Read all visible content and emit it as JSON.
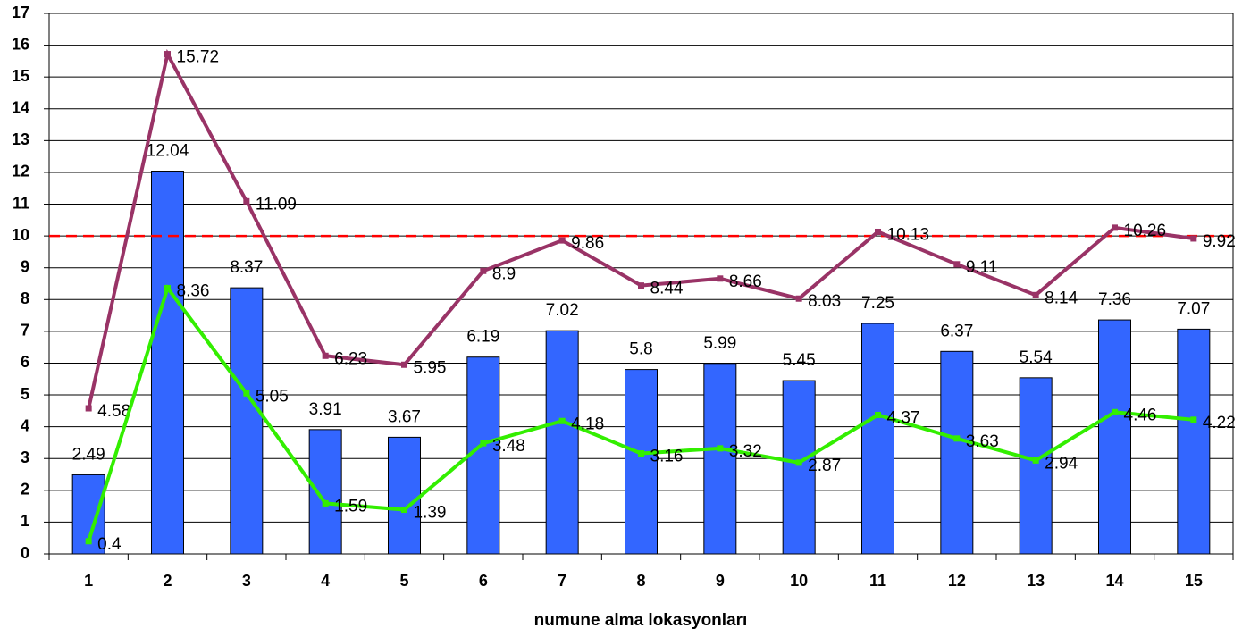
{
  "chart_data": {
    "type": "bar",
    "x_label": "numune alma lokasyonları",
    "categories": [
      "1",
      "2",
      "3",
      "4",
      "5",
      "6",
      "7",
      "8",
      "9",
      "10",
      "11",
      "12",
      "13",
      "14",
      "15"
    ],
    "series": [
      {
        "type": "bar",
        "color": "#3366ff",
        "values": [
          2.49,
          12.04,
          8.37,
          3.91,
          3.67,
          6.19,
          7.02,
          5.8,
          5.99,
          5.45,
          7.25,
          6.37,
          5.54,
          7.36,
          7.07
        ]
      },
      {
        "type": "line",
        "color": "#993366",
        "values": [
          4.58,
          15.72,
          11.09,
          6.23,
          5.95,
          8.9,
          9.86,
          8.44,
          8.66,
          8.03,
          10.13,
          9.11,
          8.14,
          10.26,
          9.92
        ]
      },
      {
        "type": "line",
        "color": "#33ee00",
        "values": [
          0.4,
          8.36,
          5.05,
          1.59,
          1.39,
          3.48,
          4.18,
          3.16,
          3.32,
          2.87,
          4.37,
          3.63,
          2.94,
          4.46,
          4.22
        ]
      }
    ],
    "reference_line": {
      "value": 10,
      "color": "#ff0000"
    },
    "ylim": [
      0,
      17
    ],
    "yticks": [
      0,
      1,
      2,
      3,
      4,
      5,
      6,
      7,
      8,
      9,
      10,
      11,
      12,
      13,
      14,
      15,
      16,
      17
    ],
    "grid": true
  }
}
